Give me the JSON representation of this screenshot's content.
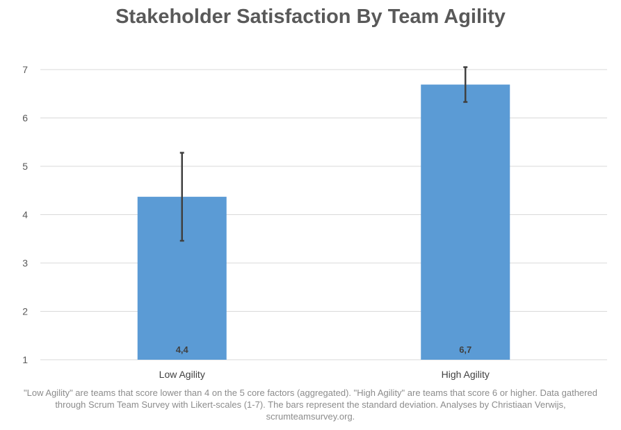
{
  "chart_data": {
    "type": "bar",
    "title": "Stakeholder Satisfaction By Team Agility",
    "categories": [
      "Low Agility",
      "High Agility"
    ],
    "values": [
      4.37,
      6.69
    ],
    "error": [
      0.91,
      0.36
    ],
    "data_labels": [
      "4,4",
      "6,7"
    ],
    "ylim": [
      1,
      7
    ],
    "yticks": [
      1,
      2,
      3,
      4,
      5,
      6,
      7
    ],
    "ytick_labels": [
      "1",
      "2",
      "3",
      "4",
      "5",
      "6",
      "7"
    ],
    "grid": true,
    "bar_color": "#5b9bd5",
    "error_bar_color": "#404040",
    "gridline_color": "#d9d9d9"
  },
  "footnote": "\"Low Agility\" are teams that score lower than 4 on the 5 core factors (aggregated). \"High Agility\" are teams that score 6 or higher.  Data gathered through Scrum Team Survey with Likert-scales (1-7). The bars represent the standard deviation. Analyses by Christiaan Verwijs, scrumteamsurvey.org."
}
